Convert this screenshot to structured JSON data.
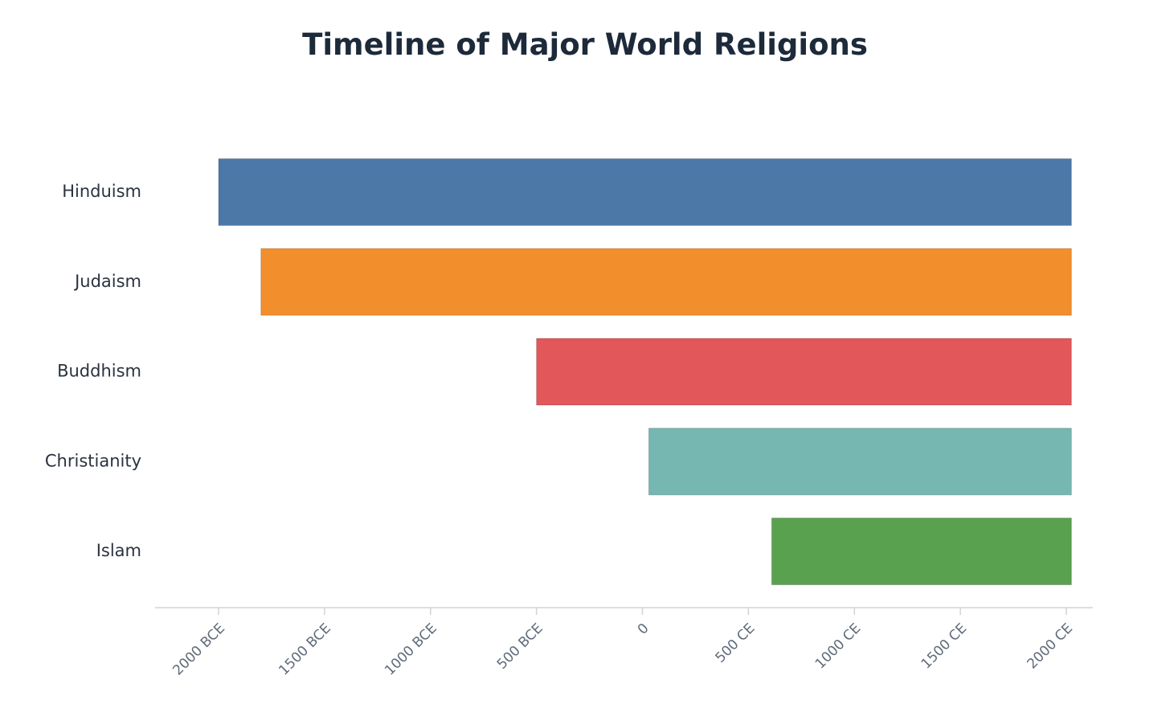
{
  "chart_data": {
    "type": "bar",
    "orientation": "horizontal",
    "title": "Timeline of Major World Religions",
    "xlabel": "",
    "ylabel": "",
    "grid": false,
    "legend": "none",
    "xlim": [
      -2300,
      2125
    ],
    "x_ticks": [
      {
        "value": -2000,
        "label": "2000 BCE"
      },
      {
        "value": -1500,
        "label": "1500 BCE"
      },
      {
        "value": -1000,
        "label": "1000 BCE"
      },
      {
        "value": -500,
        "label": "500 BCE"
      },
      {
        "value": 0,
        "label": "0"
      },
      {
        "value": 500,
        "label": "500 CE"
      },
      {
        "value": 1000,
        "label": "1000 CE"
      },
      {
        "value": 1500,
        "label": "1500 CE"
      },
      {
        "value": 2000,
        "label": "2000 CE"
      }
    ],
    "bars": [
      {
        "label": "Hinduism",
        "start": -2000,
        "end": 2024,
        "color": "#4c78a8"
      },
      {
        "label": "Judaism",
        "start": -1800,
        "end": 2024,
        "color": "#f28e2c"
      },
      {
        "label": "Buddhism",
        "start": -500,
        "end": 2024,
        "color": "#e1575a"
      },
      {
        "label": "Christianity",
        "start": 30,
        "end": 2024,
        "color": "#76b7b2"
      },
      {
        "label": "Islam",
        "start": 610,
        "end": 2024,
        "color": "#59a14f"
      }
    ]
  }
}
